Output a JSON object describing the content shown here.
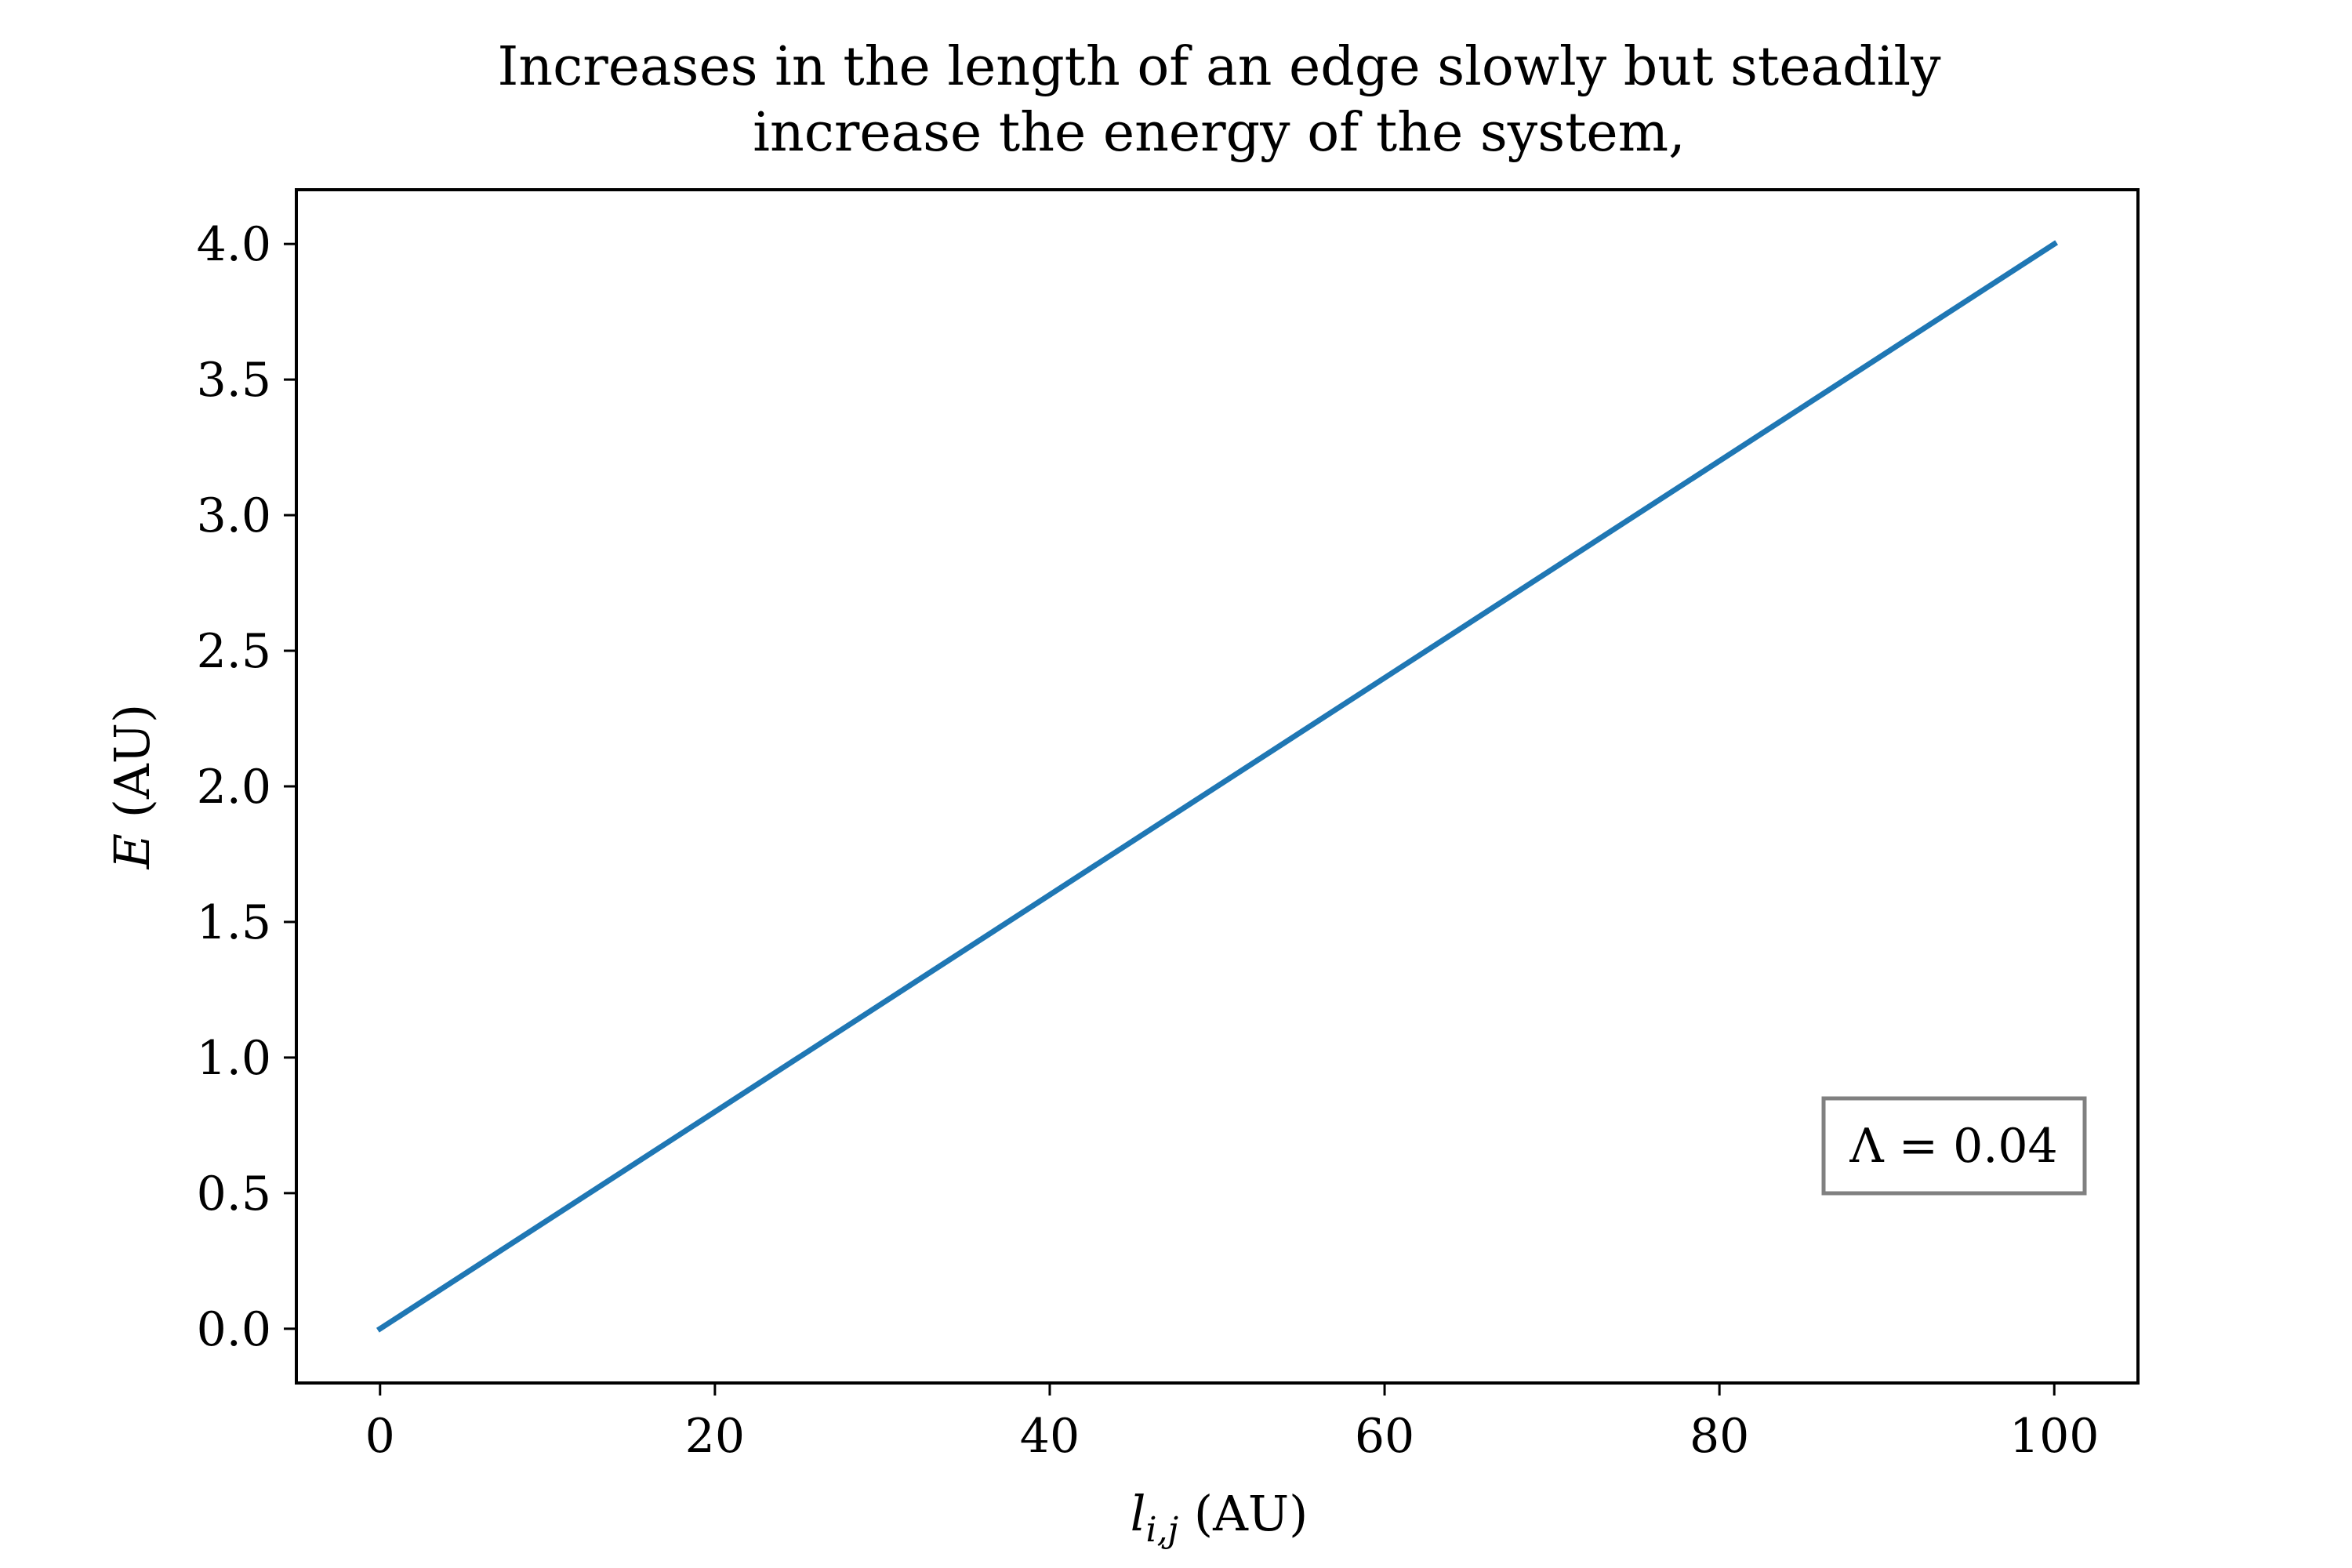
{
  "chart_data": {
    "type": "line",
    "title_lines": [
      "Increases in the length of an edge slowly but steadily",
      "increase the energy of the system,"
    ],
    "xlabel": {
      "main": "l",
      "sub": "i,j",
      "unit": " (AU)"
    },
    "ylabel": {
      "main": "E",
      "unit": " (AU)"
    },
    "xlim": [
      -5,
      105
    ],
    "ylim": [
      -0.2,
      4.2
    ],
    "xticks": [
      0,
      20,
      40,
      60,
      80,
      100
    ],
    "xtick_labels": [
      "0",
      "20",
      "40",
      "60",
      "80",
      "100"
    ],
    "yticks": [
      0.0,
      0.5,
      1.0,
      1.5,
      2.0,
      2.5,
      3.0,
      3.5,
      4.0
    ],
    "ytick_labels": [
      "0.0",
      "0.5",
      "1.0",
      "1.5",
      "2.0",
      "2.5",
      "3.0",
      "3.5",
      "4.0"
    ],
    "grid": false,
    "series": [
      {
        "color": "#1f77b4",
        "x": [
          0,
          100
        ],
        "y": [
          0.0,
          4.0
        ]
      }
    ],
    "annotation": {
      "text": "Λ = 0.04",
      "position": "lower-right",
      "border_color": "#808080"
    }
  }
}
